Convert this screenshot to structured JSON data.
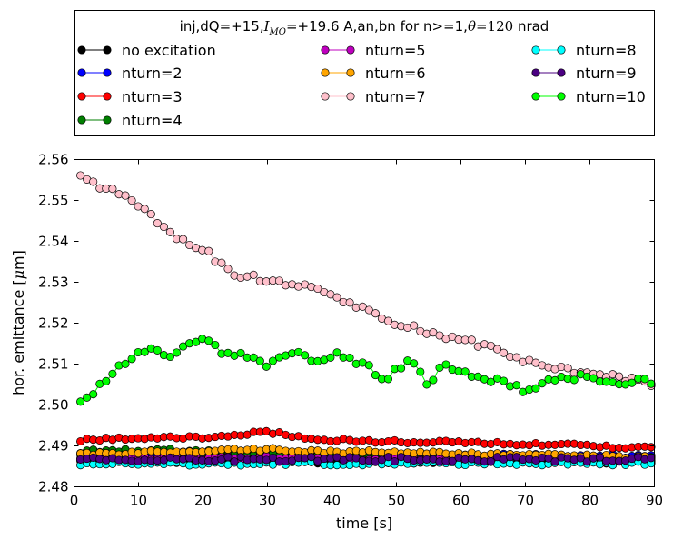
{
  "chart_data": {
    "type": "line",
    "title": "inj,dQ=+15,I_MO=+19.6 A,an,bn for n>=1,θ=120 nrad",
    "title_parts": {
      "prefix": "inj,dQ=+15,",
      "imo_sym": "I",
      "imo_sub": "MO",
      "middle": "=+19.6 A,an,bn for n>=1,",
      "theta_sym": "θ",
      "suffix_eq": "=120",
      "suffix_unit": " nrad"
    },
    "xlabel": "time [s]",
    "ylabel_prefix": "hor. emittance [",
    "ylabel_mu": "μ",
    "ylabel_suffix": "m]",
    "xlim": [
      0,
      90
    ],
    "ylim": [
      2.48,
      2.56
    ],
    "xticks": [
      0,
      10,
      20,
      30,
      40,
      50,
      60,
      70,
      80,
      90
    ],
    "xtick_labels": [
      "0",
      "10",
      "20",
      "30",
      "40",
      "50",
      "60",
      "70",
      "80",
      "90"
    ],
    "yticks": [
      2.48,
      2.49,
      2.5,
      2.51,
      2.52,
      2.53,
      2.54,
      2.55,
      2.56
    ],
    "ytick_labels": [
      "2.48",
      "2.49",
      "2.50",
      "2.51",
      "2.52",
      "2.53",
      "2.54",
      "2.55",
      "2.56"
    ],
    "grid": false,
    "legend_position": "top (above plot)",
    "legend_columns": 3,
    "series": [
      {
        "name": "no excitation",
        "color": "#000000",
        "base": 2.4863,
        "noise": 0.0006,
        "seed": 1
      },
      {
        "name": "nturn=2",
        "color": "#0000ff",
        "base": 2.4875,
        "noise": 0.0006,
        "seed": 2
      },
      {
        "name": "nturn=3",
        "color": "#ff0000",
        "keypoints": [
          [
            1,
            2.4915
          ],
          [
            10,
            2.492
          ],
          [
            20,
            2.492
          ],
          [
            25,
            2.4925
          ],
          [
            30,
            2.4935
          ],
          [
            35,
            2.492
          ],
          [
            40,
            2.4915
          ],
          [
            50,
            2.491
          ],
          [
            60,
            2.491
          ],
          [
            70,
            2.4905
          ],
          [
            80,
            2.49
          ],
          [
            90,
            2.4895
          ]
        ],
        "noise": 0.0004,
        "seed": 3
      },
      {
        "name": "nturn=4",
        "color": "#007f00",
        "keypoints": [
          [
            1,
            2.4885
          ],
          [
            10,
            2.489
          ],
          [
            20,
            2.4885
          ],
          [
            30,
            2.488
          ],
          [
            45,
            2.4875
          ],
          [
            60,
            2.487
          ],
          [
            75,
            2.487
          ],
          [
            90,
            2.4868
          ]
        ],
        "noise": 0.0005,
        "seed": 4
      },
      {
        "name": "nturn=5",
        "color": "#bf00bf",
        "base": 2.487,
        "noise": 0.0006,
        "seed": 5
      },
      {
        "name": "nturn=6",
        "color": "#ffa500",
        "keypoints": [
          [
            1,
            2.488
          ],
          [
            15,
            2.4885
          ],
          [
            28,
            2.4892
          ],
          [
            40,
            2.4885
          ],
          [
            50,
            2.4885
          ],
          [
            60,
            2.488
          ],
          [
            70,
            2.4878
          ],
          [
            80,
            2.4875
          ],
          [
            90,
            2.4872
          ]
        ],
        "noise": 0.0004,
        "seed": 6
      },
      {
        "name": "nturn=7",
        "color": "#ffc0cb",
        "keypoints": [
          [
            1,
            2.5555
          ],
          [
            5,
            2.553
          ],
          [
            10,
            2.549
          ],
          [
            15,
            2.542
          ],
          [
            20,
            2.538
          ],
          [
            25,
            2.532
          ],
          [
            30,
            2.5305
          ],
          [
            35,
            2.529
          ],
          [
            40,
            2.527
          ],
          [
            45,
            2.5235
          ],
          [
            50,
            2.5195
          ],
          [
            55,
            2.518
          ],
          [
            60,
            2.516
          ],
          [
            65,
            2.514
          ],
          [
            70,
            2.511
          ],
          [
            75,
            2.509
          ],
          [
            80,
            2.5075
          ],
          [
            85,
            2.5065
          ],
          [
            90,
            2.5045
          ]
        ],
        "noise": 0.0008,
        "seed": 7
      },
      {
        "name": "nturn=8",
        "color": "#00ffff",
        "base": 2.4857,
        "noise": 0.0005,
        "seed": 8
      },
      {
        "name": "nturn=9",
        "color": "#4b0082",
        "base": 2.4867,
        "noise": 0.0006,
        "seed": 9
      },
      {
        "name": "nturn=10",
        "color": "#00ff00",
        "keypoints": [
          [
            1,
            2.5005
          ],
          [
            3,
            2.503
          ],
          [
            6,
            2.508
          ],
          [
            10,
            2.5135
          ],
          [
            15,
            2.5125
          ],
          [
            20,
            2.5165
          ],
          [
            23,
            2.5125
          ],
          [
            26,
            2.512
          ],
          [
            30,
            2.51
          ],
          [
            33,
            2.513
          ],
          [
            38,
            2.511
          ],
          [
            41,
            2.5125
          ],
          [
            45,
            2.51
          ],
          [
            48,
            2.506
          ],
          [
            52,
            2.511
          ],
          [
            55,
            2.505
          ],
          [
            57,
            2.51
          ],
          [
            60,
            2.508
          ],
          [
            63,
            2.506
          ],
          [
            66,
            2.506
          ],
          [
            70,
            2.5035
          ],
          [
            74,
            2.506
          ],
          [
            78,
            2.507
          ],
          [
            82,
            2.5055
          ],
          [
            86,
            2.5055
          ],
          [
            90,
            2.506
          ]
        ],
        "noise": 0.0008,
        "seed": 10
      }
    ],
    "t_start": 1,
    "t_end": 89.5,
    "n_points": 90
  }
}
